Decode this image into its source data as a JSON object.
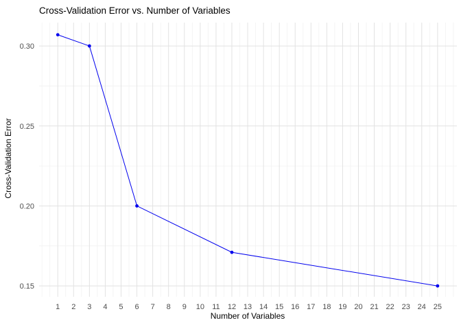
{
  "chart_data": {
    "type": "line",
    "title": "Cross-Validation Error vs. Number of Variables",
    "xlabel": "Number of Variables",
    "ylabel": "Cross-Validation Error",
    "x": [
      1,
      3,
      6,
      12,
      25
    ],
    "y": [
      0.307,
      0.3,
      0.2,
      0.171,
      0.15
    ],
    "x_ticks": [
      1,
      2,
      3,
      4,
      5,
      6,
      7,
      8,
      9,
      10,
      11,
      12,
      13,
      14,
      15,
      16,
      17,
      18,
      19,
      20,
      21,
      22,
      23,
      24,
      25
    ],
    "x_tick_labels": [
      "1",
      "2",
      "3",
      "4",
      "5",
      "6",
      "7",
      "8",
      "9",
      "10",
      "11",
      "12",
      "13",
      "14",
      "15",
      "16",
      "17",
      "18",
      "19",
      "20",
      "21",
      "22",
      "23",
      "24",
      "25"
    ],
    "y_ticks": [
      0.15,
      0.2,
      0.25,
      0.3
    ],
    "y_tick_labels": [
      "0.15",
      "0.20",
      "0.25",
      "0.30"
    ],
    "y_minor_ticks": [
      0.175,
      0.225,
      0.275
    ],
    "xlim": [
      -0.18,
      26.22
    ],
    "ylim": [
      0.1432,
      0.3146
    ],
    "grid": true,
    "legend": "none",
    "colors": {
      "series": "#0000EE",
      "point": "#0000EE",
      "grid_major": "#e2e2e2",
      "grid_minor": "#f1f1f1",
      "tick_label": "#4d4d4d",
      "title": "#000000",
      "background": "#ffffff"
    }
  }
}
